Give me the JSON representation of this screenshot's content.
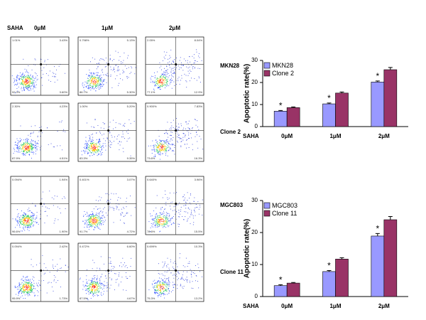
{
  "flow": {
    "treatment_label": "SAHA",
    "columns": [
      "0μM",
      "1μM",
      "2μM"
    ],
    "rows": [
      {
        "label": "MKN28",
        "panels": [
          [
            "1.01%",
            "3.43%",
            "92.0%",
            "3.60%"
          ],
          [
            "0.798%",
            "5.13%",
            "86.7%",
            "5.30%"
          ],
          [
            "2.05%",
            "8.04%",
            "77.1%",
            "12.9%"
          ]
        ]
      },
      {
        "label": "Clone 2",
        "panels": [
          [
            "2.30%",
            "4.23%",
            "87.9%",
            "4.51%"
          ],
          [
            "1.00%",
            "5.20%",
            "83.3%",
            "9.35%"
          ],
          [
            "0.900%",
            "7.83%",
            "73.6%",
            "16.3%"
          ]
        ]
      },
      {
        "label": "MGC803",
        "panels": [
          [
            "0.094%",
            "1.94%",
            "96.6%",
            "1.90%"
          ],
          [
            "0.401%",
            "3.07%",
            "91.7%",
            "4.72%"
          ],
          [
            "0.640%",
            "3.96%",
            "78.6%",
            "15.5%"
          ]
        ]
      },
      {
        "label": "Clone 11",
        "panels": [
          [
            "0.094%",
            "2.42%",
            "95.9%",
            "1.73%"
          ],
          [
            "0.472%",
            "6.60%",
            "87.5%",
            "4.67%"
          ],
          [
            "0.699%",
            "10.3%",
            "75.3%",
            "13.2%"
          ]
        ]
      }
    ]
  },
  "chart_data": [
    {
      "type": "bar",
      "y_label": "Apoptotic rate(%)",
      "x_label": "SAHA",
      "categories": [
        "0μM",
        "1μM",
        "2μM"
      ],
      "ylim": [
        0,
        30
      ],
      "yticks": [
        0,
        10,
        20,
        30
      ],
      "legend": "top-left",
      "series": [
        {
          "name": "MKN28",
          "color": "#9999ff",
          "values": [
            7,
            10.3,
            20.2
          ],
          "errors": [
            0.3,
            0.4,
            0.5
          ],
          "significance": [
            "*",
            "*",
            "*"
          ]
        },
        {
          "name": "Clone 2",
          "color": "#993366",
          "values": [
            8.6,
            15.2,
            25.8
          ],
          "errors": [
            0.3,
            0.5,
            1.0
          ]
        }
      ]
    },
    {
      "type": "bar",
      "y_label": "Apoptotic rate(%)",
      "x_label": "SAHA",
      "categories": [
        "0μM",
        "1μM",
        "2μM"
      ],
      "ylim": [
        0,
        30
      ],
      "yticks": [
        0,
        10,
        20,
        30
      ],
      "legend": "top-left",
      "series": [
        {
          "name": "MGC803",
          "color": "#9999ff",
          "values": [
            3.4,
            7.8,
            18.9
          ],
          "errors": [
            0.3,
            0.3,
            0.8
          ],
          "significance": [
            "*",
            "*",
            "*"
          ]
        },
        {
          "name": "Clone 11",
          "color": "#993366",
          "values": [
            4.2,
            11.7,
            24
          ],
          "errors": [
            0.2,
            0.4,
            1.0
          ]
        }
      ]
    }
  ]
}
